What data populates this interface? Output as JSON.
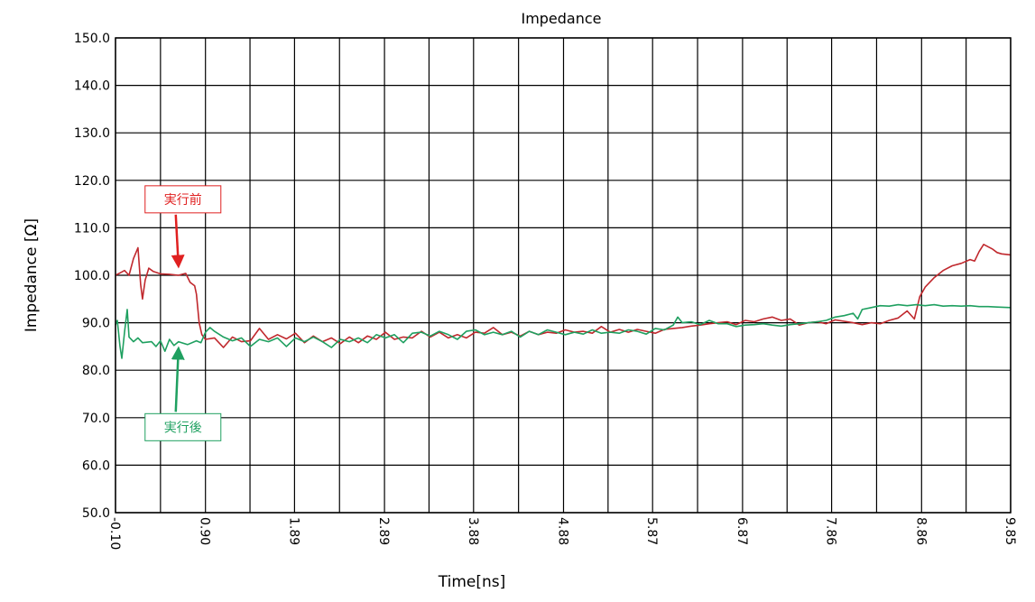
{
  "chart_data": {
    "type": "line",
    "title": "Impedance",
    "xlabel": "Time[ns]",
    "ylabel": "Impedance [Ω]",
    "xlim": [
      -0.1,
      9.85
    ],
    "ylim": [
      50.0,
      150.0
    ],
    "grid": true,
    "x_ticks": [
      -0.1,
      0.9,
      1.89,
      2.89,
      3.88,
      4.88,
      5.87,
      6.87,
      7.86,
      8.86,
      9.85
    ],
    "x_tick_labels": [
      "-0.10",
      "0.90",
      "1.89",
      "2.89",
      "3.88",
      "4.88",
      "5.87",
      "6.87",
      "7.86",
      "8.86",
      "9.85"
    ],
    "y_ticks": [
      50,
      60,
      70,
      80,
      90,
      100,
      110,
      120,
      130,
      140,
      150
    ],
    "y_tick_labels": [
      "50.0",
      "60.0",
      "70.0",
      "80.0",
      "90.0",
      "100.0",
      "110.0",
      "120.0",
      "130.0",
      "140.0",
      "150.0"
    ],
    "series": [
      {
        "name": "実行前",
        "color": "#c0282d",
        "points": [
          [
            -0.1,
            100.0
          ],
          [
            -0.05,
            100.5
          ],
          [
            0.0,
            101.0
          ],
          [
            0.05,
            100.0
          ],
          [
            0.1,
            103.5
          ],
          [
            0.15,
            105.8
          ],
          [
            0.18,
            98.0
          ],
          [
            0.2,
            95.0
          ],
          [
            0.23,
            99.0
          ],
          [
            0.27,
            101.5
          ],
          [
            0.32,
            100.8
          ],
          [
            0.4,
            100.3
          ],
          [
            0.5,
            100.2
          ],
          [
            0.6,
            100.0
          ],
          [
            0.68,
            100.4
          ],
          [
            0.73,
            98.5
          ],
          [
            0.78,
            97.8
          ],
          [
            0.8,
            96.0
          ],
          [
            0.83,
            90.0
          ],
          [
            0.86,
            87.5
          ],
          [
            0.9,
            86.5
          ],
          [
            1.0,
            86.8
          ],
          [
            1.1,
            84.8
          ],
          [
            1.2,
            87.0
          ],
          [
            1.3,
            86.0
          ],
          [
            1.4,
            86.2
          ],
          [
            1.5,
            88.8
          ],
          [
            1.6,
            86.5
          ],
          [
            1.7,
            87.5
          ],
          [
            1.8,
            86.6
          ],
          [
            1.9,
            87.8
          ],
          [
            2.0,
            85.8
          ],
          [
            2.1,
            87.2
          ],
          [
            2.2,
            86.0
          ],
          [
            2.3,
            86.8
          ],
          [
            2.4,
            85.6
          ],
          [
            2.5,
            87.0
          ],
          [
            2.6,
            85.8
          ],
          [
            2.7,
            87.2
          ],
          [
            2.8,
            86.5
          ],
          [
            2.9,
            88.0
          ],
          [
            3.0,
            86.5
          ],
          [
            3.1,
            87.0
          ],
          [
            3.2,
            86.8
          ],
          [
            3.3,
            88.2
          ],
          [
            3.4,
            87.0
          ],
          [
            3.5,
            88.0
          ],
          [
            3.6,
            86.8
          ],
          [
            3.7,
            87.5
          ],
          [
            3.8,
            86.8
          ],
          [
            3.9,
            88.0
          ],
          [
            4.0,
            87.8
          ],
          [
            4.1,
            89.0
          ],
          [
            4.2,
            87.5
          ],
          [
            4.3,
            88.0
          ],
          [
            4.4,
            87.2
          ],
          [
            4.5,
            88.2
          ],
          [
            4.6,
            87.5
          ],
          [
            4.7,
            88.0
          ],
          [
            4.8,
            87.8
          ],
          [
            4.9,
            88.5
          ],
          [
            5.0,
            88.0
          ],
          [
            5.1,
            88.2
          ],
          [
            5.2,
            87.8
          ],
          [
            5.3,
            89.2
          ],
          [
            5.4,
            88.0
          ],
          [
            5.5,
            88.6
          ],
          [
            5.6,
            88.0
          ],
          [
            5.7,
            88.6
          ],
          [
            5.8,
            88.2
          ],
          [
            5.9,
            87.8
          ],
          [
            6.0,
            88.6
          ],
          [
            6.1,
            88.8
          ],
          [
            6.2,
            89.0
          ],
          [
            6.3,
            89.3
          ],
          [
            6.4,
            89.5
          ],
          [
            6.5,
            89.8
          ],
          [
            6.6,
            90.0
          ],
          [
            6.7,
            90.2
          ],
          [
            6.8,
            89.6
          ],
          [
            6.9,
            90.5
          ],
          [
            7.0,
            90.2
          ],
          [
            7.1,
            90.8
          ],
          [
            7.2,
            91.2
          ],
          [
            7.3,
            90.5
          ],
          [
            7.4,
            90.8
          ],
          [
            7.5,
            89.5
          ],
          [
            7.6,
            90.0
          ],
          [
            7.7,
            90.2
          ],
          [
            7.8,
            89.8
          ],
          [
            7.9,
            90.6
          ],
          [
            8.0,
            90.3
          ],
          [
            8.1,
            90.0
          ],
          [
            8.2,
            89.6
          ],
          [
            8.3,
            90.0
          ],
          [
            8.4,
            89.8
          ],
          [
            8.5,
            90.5
          ],
          [
            8.6,
            91.0
          ],
          [
            8.7,
            92.5
          ],
          [
            8.78,
            90.8
          ],
          [
            8.84,
            95.5
          ],
          [
            8.9,
            97.5
          ],
          [
            9.0,
            99.5
          ],
          [
            9.1,
            101.0
          ],
          [
            9.2,
            102.0
          ],
          [
            9.3,
            102.5
          ],
          [
            9.4,
            103.3
          ],
          [
            9.45,
            103.0
          ],
          [
            9.5,
            105.0
          ],
          [
            9.55,
            106.5
          ],
          [
            9.6,
            106.0
          ],
          [
            9.65,
            105.5
          ],
          [
            9.7,
            104.8
          ],
          [
            9.75,
            104.5
          ],
          [
            9.85,
            104.3
          ]
        ]
      },
      {
        "name": "実行後",
        "color": "#1fa060",
        "points": [
          [
            -0.1,
            89.5
          ],
          [
            -0.08,
            90.5
          ],
          [
            -0.05,
            85.0
          ],
          [
            -0.03,
            82.5
          ],
          [
            0.0,
            88.0
          ],
          [
            0.03,
            92.8
          ],
          [
            0.05,
            87.0
          ],
          [
            0.1,
            86.0
          ],
          [
            0.15,
            86.8
          ],
          [
            0.2,
            85.8
          ],
          [
            0.3,
            86.0
          ],
          [
            0.35,
            85.0
          ],
          [
            0.4,
            86.2
          ],
          [
            0.45,
            84.0
          ],
          [
            0.5,
            86.5
          ],
          [
            0.55,
            85.2
          ],
          [
            0.6,
            86.0
          ],
          [
            0.7,
            85.4
          ],
          [
            0.8,
            86.2
          ],
          [
            0.85,
            85.8
          ],
          [
            0.9,
            88.0
          ],
          [
            0.95,
            89.0
          ],
          [
            1.0,
            88.2
          ],
          [
            1.1,
            87.0
          ],
          [
            1.2,
            86.2
          ],
          [
            1.3,
            86.8
          ],
          [
            1.4,
            85.0
          ],
          [
            1.5,
            86.5
          ],
          [
            1.6,
            86.0
          ],
          [
            1.7,
            86.8
          ],
          [
            1.8,
            85.0
          ],
          [
            1.9,
            86.8
          ],
          [
            2.0,
            86.0
          ],
          [
            2.1,
            87.0
          ],
          [
            2.2,
            86.0
          ],
          [
            2.3,
            84.8
          ],
          [
            2.4,
            86.5
          ],
          [
            2.5,
            86.0
          ],
          [
            2.6,
            86.8
          ],
          [
            2.7,
            85.8
          ],
          [
            2.8,
            87.5
          ],
          [
            2.9,
            86.8
          ],
          [
            3.0,
            87.5
          ],
          [
            3.1,
            85.8
          ],
          [
            3.2,
            87.8
          ],
          [
            3.3,
            88.0
          ],
          [
            3.4,
            87.2
          ],
          [
            3.5,
            88.2
          ],
          [
            3.6,
            87.5
          ],
          [
            3.7,
            86.5
          ],
          [
            3.8,
            88.2
          ],
          [
            3.9,
            88.5
          ],
          [
            4.0,
            87.5
          ],
          [
            4.1,
            88.0
          ],
          [
            4.2,
            87.5
          ],
          [
            4.3,
            88.2
          ],
          [
            4.4,
            87.0
          ],
          [
            4.5,
            88.2
          ],
          [
            4.6,
            87.5
          ],
          [
            4.7,
            88.5
          ],
          [
            4.8,
            88.0
          ],
          [
            4.9,
            87.5
          ],
          [
            5.0,
            88.0
          ],
          [
            5.1,
            87.6
          ],
          [
            5.2,
            88.5
          ],
          [
            5.3,
            87.8
          ],
          [
            5.4,
            88.0
          ],
          [
            5.5,
            87.8
          ],
          [
            5.6,
            88.5
          ],
          [
            5.7,
            88.2
          ],
          [
            5.8,
            87.6
          ],
          [
            5.9,
            88.8
          ],
          [
            6.0,
            88.5
          ],
          [
            6.1,
            89.5
          ],
          [
            6.15,
            91.2
          ],
          [
            6.2,
            90.0
          ],
          [
            6.3,
            90.2
          ],
          [
            6.4,
            89.6
          ],
          [
            6.5,
            90.5
          ],
          [
            6.6,
            89.8
          ],
          [
            6.7,
            89.8
          ],
          [
            6.8,
            89.2
          ],
          [
            6.9,
            89.5
          ],
          [
            7.0,
            89.6
          ],
          [
            7.1,
            89.8
          ],
          [
            7.2,
            89.5
          ],
          [
            7.3,
            89.3
          ],
          [
            7.4,
            89.6
          ],
          [
            7.5,
            89.8
          ],
          [
            7.6,
            90.0
          ],
          [
            7.7,
            90.2
          ],
          [
            7.8,
            90.5
          ],
          [
            7.9,
            91.2
          ],
          [
            8.0,
            91.5
          ],
          [
            8.1,
            92.0
          ],
          [
            8.15,
            90.8
          ],
          [
            8.2,
            92.8
          ],
          [
            8.3,
            93.2
          ],
          [
            8.4,
            93.6
          ],
          [
            8.5,
            93.5
          ],
          [
            8.6,
            93.8
          ],
          [
            8.7,
            93.6
          ],
          [
            8.8,
            93.8
          ],
          [
            8.9,
            93.6
          ],
          [
            9.0,
            93.8
          ],
          [
            9.1,
            93.5
          ],
          [
            9.2,
            93.6
          ],
          [
            9.3,
            93.5
          ],
          [
            9.4,
            93.6
          ],
          [
            9.5,
            93.4
          ],
          [
            9.6,
            93.4
          ],
          [
            9.7,
            93.3
          ],
          [
            9.85,
            93.2
          ]
        ]
      }
    ],
    "annotations": [
      {
        "text": "実行前",
        "series": "実行前",
        "color": "#e02020",
        "label_x": 0.65,
        "label_y": 116.0,
        "arrow_to_x": 0.6,
        "arrow_to_y": 102.0
      },
      {
        "text": "実行後",
        "series": "実行後",
        "color": "#1fa060",
        "label_x": 0.65,
        "label_y": 68.0,
        "arrow_to_x": 0.6,
        "arrow_to_y": 84.5
      }
    ]
  }
}
